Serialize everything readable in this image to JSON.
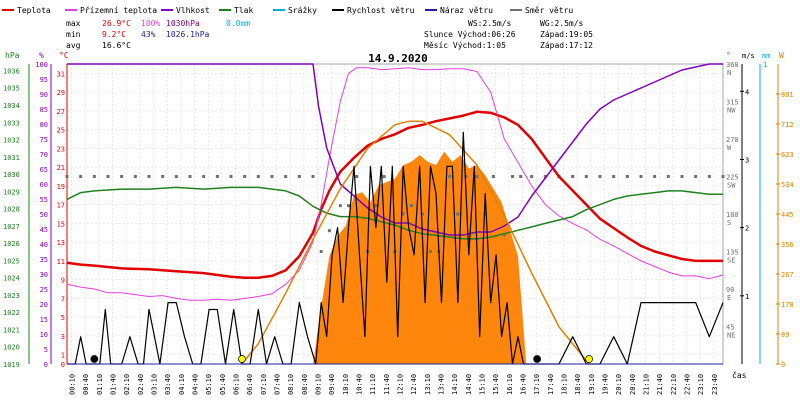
{
  "legend": [
    {
      "label": "Teplota",
      "color": "#e00000"
    },
    {
      "label": "Přízemní teplota",
      "color": "#e040e0"
    },
    {
      "label": "Vlhkost",
      "color": "#8000c0"
    },
    {
      "label": "Tlak",
      "color": "#208020"
    },
    {
      "label": "Srážky",
      "color": "#00b0d0"
    },
    {
      "label": "Rychlost větru",
      "color": "#000000"
    },
    {
      "label": "Náraz větru",
      "color": "#2020a0"
    },
    {
      "label": "Směr větru",
      "color": "#707070"
    }
  ],
  "stats": {
    "max_label": "max",
    "max_temp": "26.9°C",
    "max_hum": "100%",
    "max_press": "1030hPa",
    "rain": "0.0mm",
    "min_label": "min",
    "min_temp": "9.2°C",
    "min_hum": "43%",
    "min_press": "1026.1hPa",
    "avg_label": "avg",
    "avg_temp": "16.6°C"
  },
  "astro": {
    "ws": "WS:2.5m/s",
    "wg": "WG:2.5m/s",
    "sun": "Slunce Východ:06:26",
    "sunset": "Západ:19:05",
    "moon": "Měsíc  Východ:1:05",
    "moonset": "Západ:17:12"
  },
  "chart_data": {
    "type": "line",
    "title": "14.9.2020",
    "axis_units": {
      "hpa": "hPa",
      "pct": "%",
      "temp": "°C",
      "dir": "°",
      "wind": "m/s",
      "rain": "mm",
      "solar": "W"
    },
    "xlabel": "čas",
    "x_ticks": [
      "00:10",
      "00:40",
      "01:10",
      "01:40",
      "02:10",
      "02:40",
      "03:10",
      "03:40",
      "04:10",
      "04:40",
      "05:10",
      "05:40",
      "06:10",
      "06:40",
      "07:10",
      "07:40",
      "08:10",
      "08:40",
      "09:10",
      "09:40",
      "10:10",
      "10:40",
      "11:10",
      "11:40",
      "12:10",
      "12:40",
      "13:10",
      "13:40",
      "14:10",
      "14:40",
      "15:10",
      "15:40",
      "16:10",
      "16:40",
      "17:10",
      "17:40",
      "18:10",
      "18:40",
      "19:10",
      "19:40",
      "20:10",
      "20:40",
      "21:10",
      "21:40",
      "22:10",
      "22:40",
      "23:10",
      "23:40"
    ],
    "pressure_ticks": [
      "1036",
      "1035",
      "1034",
      "1033",
      "1032",
      "1031",
      "1030",
      "1029",
      "1028",
      "1027",
      "1026",
      "1025",
      "1024",
      "1023",
      "1022",
      "1021",
      "1020",
      "1019"
    ],
    "humidity_ticks": [
      "100",
      "95",
      "90",
      "85",
      "80",
      "75",
      "70",
      "65",
      "60",
      "55",
      "50",
      "45",
      "40",
      "35",
      "30",
      "25",
      "20",
      "15",
      "10",
      "5",
      "0"
    ],
    "temp_ticks": [
      "31",
      "29",
      "27",
      "25",
      "23",
      "21",
      "19",
      "17",
      "15",
      "13",
      "11",
      "9",
      "7",
      "5",
      "3",
      "1",
      "0"
    ],
    "dir_ticks": [
      {
        "v": "360",
        "d": "N"
      },
      {
        "v": "315",
        "d": "NW"
      },
      {
        "v": "270",
        "d": "W"
      },
      {
        "v": "225",
        "d": "SW"
      },
      {
        "v": "180",
        "d": "S"
      },
      {
        "v": "135",
        "d": "SE"
      },
      {
        "v": "90",
        "d": "E"
      },
      {
        "v": "45",
        "d": "NE"
      }
    ],
    "wind_ticks": [
      "4",
      "3",
      "2",
      "1"
    ],
    "rain_ticks": [
      "1"
    ],
    "solar_ticks": [
      "801",
      "712",
      "623",
      "534",
      "445",
      "356",
      "267",
      "178",
      "89",
      "0"
    ],
    "ylim_temp": [
      0,
      32
    ],
    "ylim_pct": [
      0,
      100
    ],
    "ylim_press": [
      1019,
      1036.5
    ],
    "ylim_dir": [
      0,
      360
    ],
    "ylim_wind": [
      0,
      4.4
    ],
    "ylim_solar": [
      0,
      890
    ],
    "series": [
      {
        "key": "temp",
        "name": "Teplota",
        "color": "#e00000",
        "width": 2.5,
        "axis": "temp",
        "x": [
          0,
          0.5,
          1,
          2,
          3,
          4,
          5,
          6,
          6.5,
          7,
          7.5,
          8,
          8.5,
          9,
          9.3,
          9.6,
          10,
          10.5,
          11,
          11.5,
          12,
          12.5,
          13,
          13.5,
          14,
          14.5,
          15,
          15.5,
          16,
          16.5,
          17,
          17.5,
          18,
          18.5,
          19,
          19.5,
          20,
          20.5,
          21,
          21.5,
          22,
          22.5,
          23,
          23.5,
          24
        ],
        "y": [
          10.8,
          10.6,
          10.5,
          10.2,
          10.1,
          9.9,
          9.7,
          9.3,
          9.2,
          9.2,
          9.4,
          10,
          11.5,
          14,
          16.5,
          18.5,
          20.5,
          22,
          23.3,
          24,
          24.5,
          25.2,
          25.5,
          25.9,
          26.2,
          26.5,
          26.9,
          26.8,
          26.3,
          25.5,
          24,
          22,
          20,
          18.5,
          17,
          15.5,
          14.5,
          13.5,
          12.6,
          12,
          11.6,
          11.2,
          11,
          11,
          11
        ]
      },
      {
        "key": "ground",
        "name": "Přízemní teplota",
        "color": "#e040e0",
        "width": 1,
        "axis": "temp",
        "x": [
          0,
          0.5,
          1,
          1.5,
          2,
          2.5,
          3,
          3.5,
          4,
          4.5,
          5,
          5.5,
          6,
          6.5,
          7,
          7.5,
          8,
          8.5,
          9,
          9.3,
          9.6,
          10,
          10.3,
          10.6,
          11,
          11.5,
          12,
          12.5,
          13,
          13.5,
          14,
          14.5,
          15,
          15.5,
          16,
          16.5,
          17,
          17.5,
          18,
          18.5,
          19,
          19.5,
          20,
          20.5,
          21,
          21.5,
          22,
          22.5,
          23,
          23.5,
          24
        ],
        "y": [
          8.5,
          8.2,
          8,
          7.6,
          7.6,
          7.4,
          7.2,
          7.3,
          7,
          6.8,
          6.8,
          6.9,
          6.8,
          7,
          7.2,
          7.5,
          8.5,
          10,
          13,
          17,
          22,
          28,
          31,
          31.6,
          31.6,
          31.4,
          31.5,
          31.6,
          31.4,
          31.4,
          31.5,
          31.5,
          31.2,
          29,
          24,
          21.5,
          19,
          17,
          15.8,
          15,
          14.3,
          13.3,
          12.6,
          11.8,
          11,
          10.4,
          9.8,
          9.4,
          9.4,
          9.1,
          9.5
        ]
      },
      {
        "key": "humidity",
        "name": "Vlhkost",
        "color": "#8000c0",
        "width": 1.5,
        "axis": "pct",
        "x": [
          0,
          1,
          2,
          3,
          4,
          5,
          6,
          7,
          8,
          8.5,
          9,
          9.2,
          9.5,
          10,
          10.5,
          11,
          11.5,
          12,
          12.5,
          13,
          13.5,
          14,
          14.5,
          15,
          15.5,
          16,
          16.5,
          17,
          17.5,
          18,
          18.5,
          19,
          19.5,
          20,
          20.5,
          21,
          21.5,
          22,
          22.5,
          23,
          23.5,
          24
        ],
        "y": [
          100,
          100,
          100,
          100,
          100,
          100,
          100,
          100,
          100,
          100,
          100,
          86,
          72,
          60,
          56,
          52,
          49,
          47,
          47,
          45,
          44,
          43,
          43,
          44,
          44,
          46,
          49,
          56,
          62,
          68,
          74,
          80,
          85,
          88,
          90,
          92,
          94,
          96,
          98,
          99,
          100,
          100
        ]
      },
      {
        "key": "pressure",
        "name": "Tlak",
        "color": "#208020",
        "width": 1.5,
        "axis": "press",
        "x": [
          0,
          0.5,
          1,
          2,
          3,
          4,
          5,
          6,
          7,
          8,
          8.5,
          9,
          9.5,
          10,
          10.5,
          11,
          11.5,
          12,
          12.5,
          13,
          13.5,
          14,
          14.5,
          15,
          15.5,
          16,
          16.5,
          17,
          17.5,
          18,
          18.5,
          19,
          19.5,
          20,
          20.5,
          21,
          21.5,
          22,
          22.5,
          23,
          23.5,
          24
        ],
        "y": [
          1028.6,
          1029,
          1029.1,
          1029.2,
          1029.2,
          1029.3,
          1029.2,
          1029.3,
          1029.3,
          1029.1,
          1028.8,
          1028.2,
          1027.8,
          1027.6,
          1027.6,
          1027.5,
          1027.3,
          1027.1,
          1026.8,
          1026.6,
          1026.5,
          1026.4,
          1026.3,
          1026.3,
          1026.4,
          1026.6,
          1026.8,
          1027,
          1027.2,
          1027.4,
          1027.6,
          1028,
          1028.3,
          1028.6,
          1028.8,
          1028.9,
          1029,
          1029.1,
          1029.1,
          1029,
          1028.9,
          1028.9
        ]
      },
      {
        "key": "sun",
        "name": "",
        "color": "#e08000",
        "width": 1.5,
        "axis": "solar",
        "x": [
          6.4,
          7,
          8,
          9,
          10,
          11,
          12,
          12.5,
          13,
          14,
          15,
          16,
          17,
          18,
          19.1
        ],
        "y": [
          0,
          60,
          210,
          370,
          520,
          640,
          710,
          720,
          720,
          680,
          590,
          440,
          270,
          110,
          0
        ]
      },
      {
        "key": "wind",
        "name": "Rychlost větru",
        "color": "#000000",
        "width": 1.2,
        "axis": "wind",
        "x": [
          0,
          0.3,
          0.5,
          0.7,
          1,
          1.2,
          1.4,
          1.6,
          1.8,
          2,
          2.3,
          2.6,
          2.8,
          3,
          3.2,
          3.4,
          3.7,
          4,
          4.3,
          4.6,
          4.9,
          5.2,
          5.5,
          5.8,
          6.1,
          6.4,
          6.7,
          7,
          7.3,
          7.6,
          7.9,
          8.2,
          8.5,
          8.8,
          9.1,
          9.3,
          9.5,
          9.7,
          9.9,
          10.1,
          10.3,
          10.5,
          10.7,
          10.9,
          11.1,
          11.3,
          11.5,
          11.7,
          11.9,
          12.1,
          12.3,
          12.5,
          12.7,
          12.9,
          13.1,
          13.3,
          13.5,
          13.7,
          13.9,
          14.1,
          14.3,
          14.5,
          14.7,
          14.9,
          15.1,
          15.3,
          15.5,
          15.7,
          15.9,
          16.1,
          16.3,
          16.5,
          16.7,
          17,
          17.5,
          18,
          18.5,
          19,
          19.5,
          20,
          20.5,
          21,
          21.5,
          22,
          22.5,
          23,
          23.5,
          24
        ],
        "y": [
          0,
          0,
          0.4,
          0,
          0,
          0,
          0.8,
          0,
          0,
          0,
          0.4,
          0,
          0,
          0.8,
          0.4,
          0,
          0.9,
          0.9,
          0.4,
          0,
          0,
          0.8,
          0.8,
          0,
          0.8,
          0,
          0,
          0.8,
          0,
          0.4,
          0,
          0,
          0.9,
          0.4,
          0,
          0.9,
          0.4,
          1.6,
          2,
          0.9,
          2,
          2.9,
          1.6,
          0.4,
          2.9,
          2,
          2.9,
          1.2,
          2.9,
          0.4,
          2.9,
          2,
          1.6,
          2.9,
          0.9,
          2.9,
          2.5,
          0.9,
          2.9,
          2.9,
          0.9,
          3.4,
          1.6,
          2.9,
          0.4,
          2.5,
          0.9,
          1.6,
          0.4,
          0.9,
          0,
          0.4,
          0,
          0,
          0,
          0,
          0.4,
          0,
          0,
          0.4,
          0,
          0.9,
          0.9,
          0.9,
          0.9,
          0.9,
          0.4,
          0.9
        ]
      },
      {
        "key": "gust",
        "name": "Náraz větru",
        "color": "#2020a0",
        "width": 1,
        "axis": "wind",
        "x": [
          0,
          24
        ],
        "y": [
          0,
          0
        ]
      }
    ],
    "solar_area": {
      "x": [
        9,
        9.3,
        9.6,
        9.9,
        10.2,
        10.5,
        10.8,
        11.1,
        11.4,
        11.7,
        12,
        12.3,
        12.6,
        12.9,
        13.2,
        13.5,
        13.8,
        14.1,
        14.4,
        14.7,
        15,
        15.3,
        15.6,
        15.9,
        16.2,
        16.5,
        16.8
      ],
      "y": [
        0,
        170,
        320,
        380,
        410,
        500,
        510,
        480,
        530,
        540,
        550,
        590,
        600,
        620,
        600,
        590,
        630,
        600,
        620,
        580,
        590,
        560,
        520,
        480,
        400,
        320,
        0
      ]
    },
    "wind_dir": {
      "x": [
        0,
        0.5,
        1,
        1.5,
        2,
        2.5,
        3,
        3.5,
        4,
        4.5,
        5,
        5.5,
        6,
        6.5,
        7,
        7.5,
        8,
        8.5,
        9,
        9.3,
        9.6,
        10,
        10.3,
        10.6,
        11,
        11.3,
        11.6,
        12,
        12.3,
        12.6,
        13,
        13.3,
        13.6,
        14,
        14.3,
        14.6,
        15,
        15.3,
        15.6,
        16,
        16.3,
        16.6,
        17,
        17.5,
        18,
        18.5,
        19,
        19.5,
        20,
        20.5,
        21,
        21.5,
        22,
        22.5,
        23,
        23.5,
        24
      ],
      "y": [
        225,
        225,
        225,
        225,
        225,
        225,
        225,
        225,
        225,
        225,
        225,
        225,
        225,
        225,
        225,
        225,
        225,
        225,
        225,
        135,
        160,
        190,
        190,
        225,
        135,
        190,
        225,
        135,
        180,
        190,
        180,
        135,
        135,
        225,
        180,
        225,
        225,
        180,
        225,
        155,
        225,
        225,
        225,
        225,
        225,
        225,
        225,
        225,
        225,
        225,
        225,
        225,
        225,
        225,
        225,
        225,
        225
      ]
    },
    "dots": [
      {
        "x": 1,
        "color": "#000000"
      },
      {
        "x": 6.4,
        "color": "#ffff00"
      },
      {
        "x": 17.2,
        "color": "#000000"
      },
      {
        "x": 19.1,
        "color": "#ffff00"
      }
    ]
  }
}
